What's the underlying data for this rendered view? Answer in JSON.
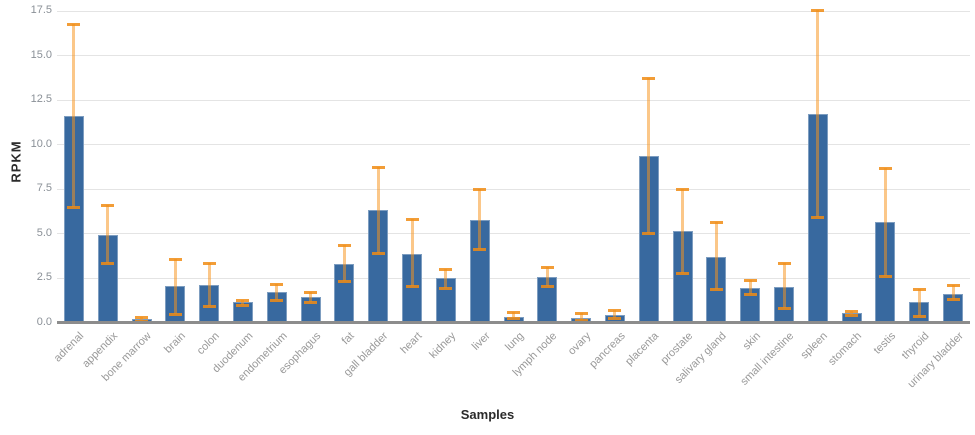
{
  "chart_data": {
    "type": "bar",
    "title": "",
    "xlabel": "Samples",
    "ylabel": "RPKM",
    "ylim": [
      0,
      17.5
    ],
    "yticks": [
      0.0,
      2.5,
      5.0,
      7.5,
      10.0,
      12.5,
      15.0,
      17.5
    ],
    "grid": true,
    "legend": "none",
    "error_bars": true,
    "categories": [
      "adrenal",
      "appendix",
      "bone marrow",
      "brain",
      "colon",
      "duodenum",
      "endometrium",
      "esophagus",
      "fat",
      "gall bladder",
      "heart",
      "kidney",
      "liver",
      "lung",
      "lymph node",
      "ovary",
      "pancreas",
      "placenta",
      "prostate",
      "salivary gland",
      "skin",
      "small intestine",
      "spleen",
      "stomach",
      "testis",
      "thyroid",
      "urinary bladder"
    ],
    "values": [
      11.6,
      4.9,
      0.15,
      2.0,
      2.1,
      1.1,
      1.7,
      1.4,
      3.25,
      6.3,
      3.8,
      2.45,
      5.75,
      0.3,
      2.55,
      0.25,
      0.4,
      9.3,
      5.1,
      3.65,
      1.9,
      1.95,
      11.7,
      0.5,
      5.6,
      1.1,
      1.6
    ],
    "error_low": [
      6.45,
      3.3,
      0.05,
      0.45,
      0.9,
      0.95,
      1.25,
      1.1,
      2.3,
      3.9,
      2.0,
      1.9,
      4.1,
      0.2,
      2.05,
      0.1,
      0.2,
      5.0,
      2.75,
      1.85,
      1.55,
      0.8,
      5.9,
      0.4,
      2.6,
      0.35,
      1.3
    ],
    "error_high": [
      16.75,
      6.55,
      0.3,
      3.55,
      3.3,
      1.25,
      2.15,
      1.7,
      4.35,
      8.7,
      5.8,
      3.0,
      7.5,
      0.55,
      3.1,
      0.5,
      0.7,
      13.7,
      7.5,
      5.6,
      2.35,
      3.3,
      17.55,
      0.6,
      8.65,
      1.85,
      2.1
    ],
    "colors": {
      "bar": "#38699f",
      "error_line": "rgba(247,148,29,0.52)",
      "error_cap": "rgba(240,140,20,0.85)",
      "grid": "#e4e4e4",
      "axis_line": "#8c8c8c",
      "tick_label": "#8a9097",
      "category_label": "#999999",
      "axis_title": "#2b2b2b"
    }
  }
}
